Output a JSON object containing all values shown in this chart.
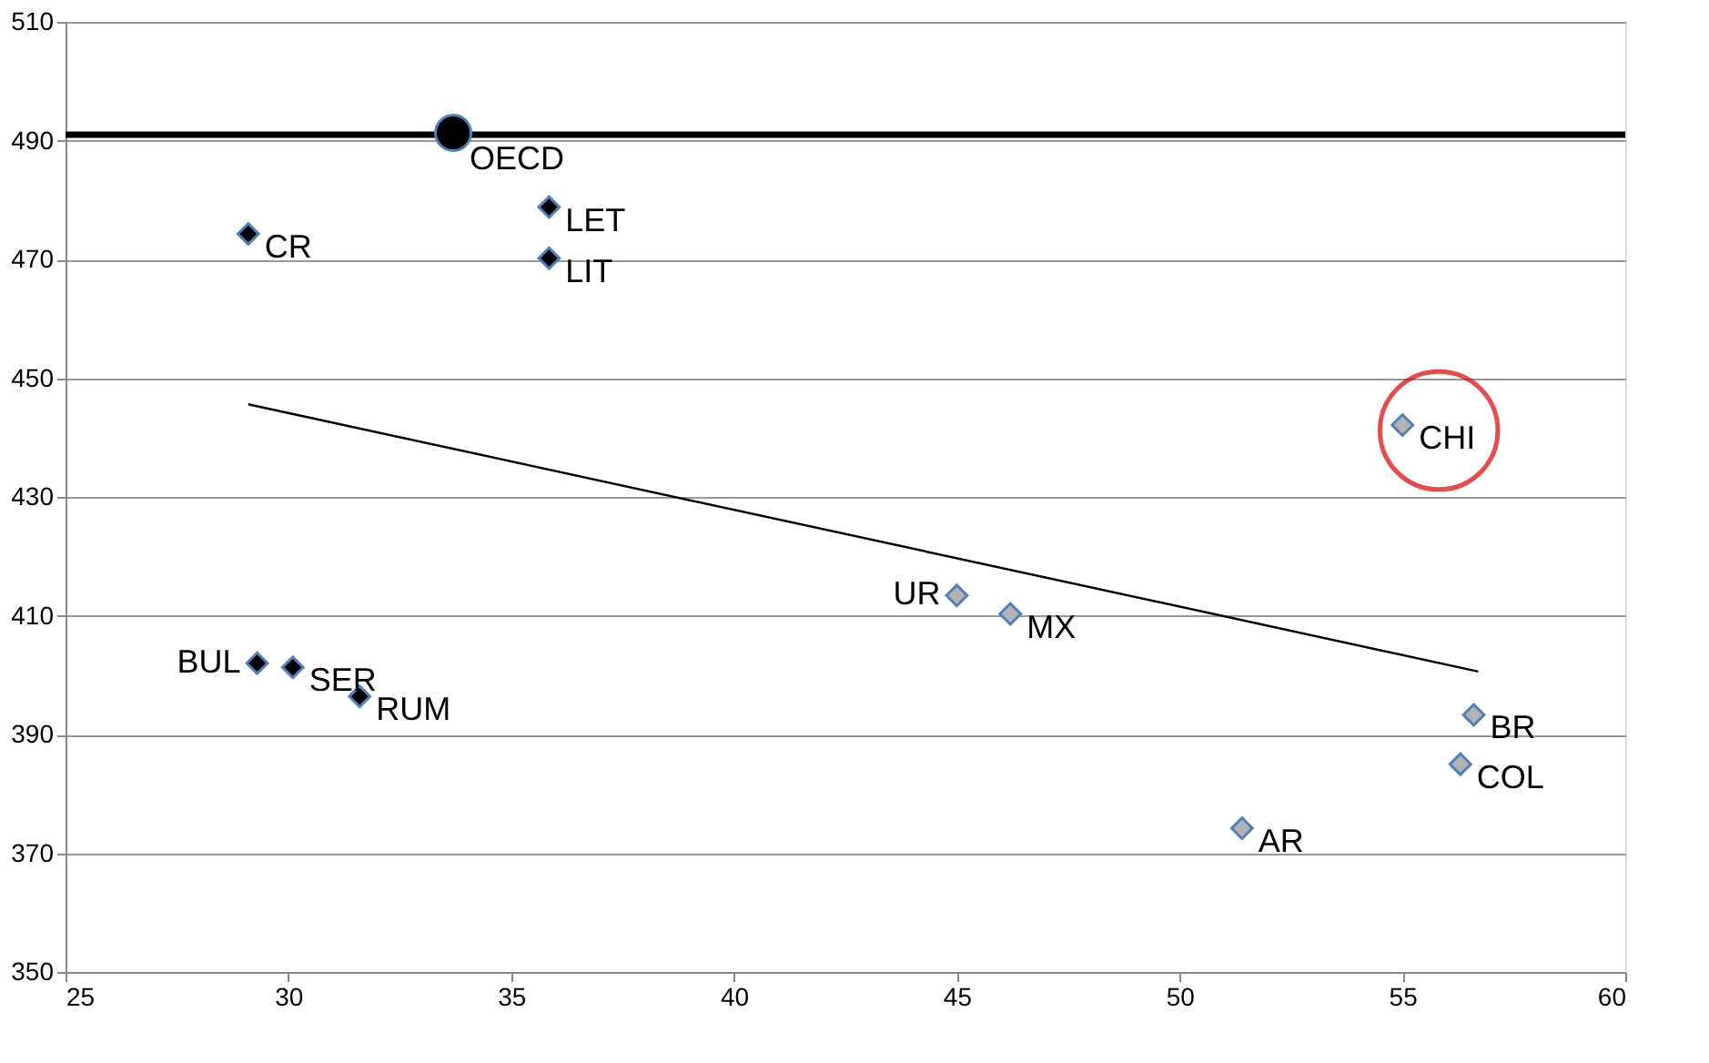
{
  "chart_data": {
    "type": "scatter",
    "xlim": [
      25,
      60
    ],
    "xticks": [
      25,
      30,
      35,
      40,
      45,
      50,
      55,
      60
    ],
    "ylim": [
      350,
      510
    ],
    "yticks": [
      350,
      370,
      390,
      410,
      430,
      450,
      470,
      490,
      510
    ],
    "grid": "y",
    "series": [
      {
        "marker": "diamond",
        "color": "#000000",
        "x": [
          29.1,
          35.85,
          35.85,
          29.3,
          30.1,
          31.6
        ],
        "values": [
          474.3,
          478.8,
          470.2,
          402,
          401.3,
          396.4
        ]
      },
      {
        "marker": "diamond",
        "color": "#b3b3b3",
        "x": [
          45.0,
          46.2,
          55.0,
          56.6,
          56.3,
          51.4
        ],
        "values": [
          413.4,
          410.3,
          442.1,
          393.3,
          385,
          374.2
        ]
      },
      {
        "marker": "circle",
        "color": "#000000",
        "x": [
          33.7
        ],
        "values": [
          491.3
        ]
      },
      {
        "type": "line",
        "color": "#000000",
        "x": [
          29.1,
          56.7
        ],
        "values": [
          445.6,
          400.6
        ]
      }
    ],
    "ref_lines": [
      {
        "axis": "y",
        "value": 491,
        "color": "#000000"
      }
    ],
    "annotations": [
      {
        "text": "CR",
        "x": 29.1,
        "y": 474.3
      },
      {
        "text": "OECD",
        "x": 33.7,
        "y": 491.3
      },
      {
        "text": "LET",
        "x": 35.85,
        "y": 478.8
      },
      {
        "text": "LIT",
        "x": 35.85,
        "y": 470.2
      },
      {
        "text": "BUL",
        "x": 29.3,
        "y": 402
      },
      {
        "text": "SER",
        "x": 30.1,
        "y": 401.3
      },
      {
        "text": "RUM",
        "x": 31.6,
        "y": 396.4
      },
      {
        "text": "UR",
        "x": 45.0,
        "y": 413.4
      },
      {
        "text": "MX",
        "x": 46.2,
        "y": 410.3
      },
      {
        "text": "CHI",
        "x": 55.0,
        "y": 442.1
      },
      {
        "text": "BR",
        "x": 56.6,
        "y": 393.3
      },
      {
        "text": "COL",
        "x": 56.3,
        "y": 385
      },
      {
        "text": "AR",
        "x": 51.4,
        "y": 374.2
      }
    ]
  }
}
